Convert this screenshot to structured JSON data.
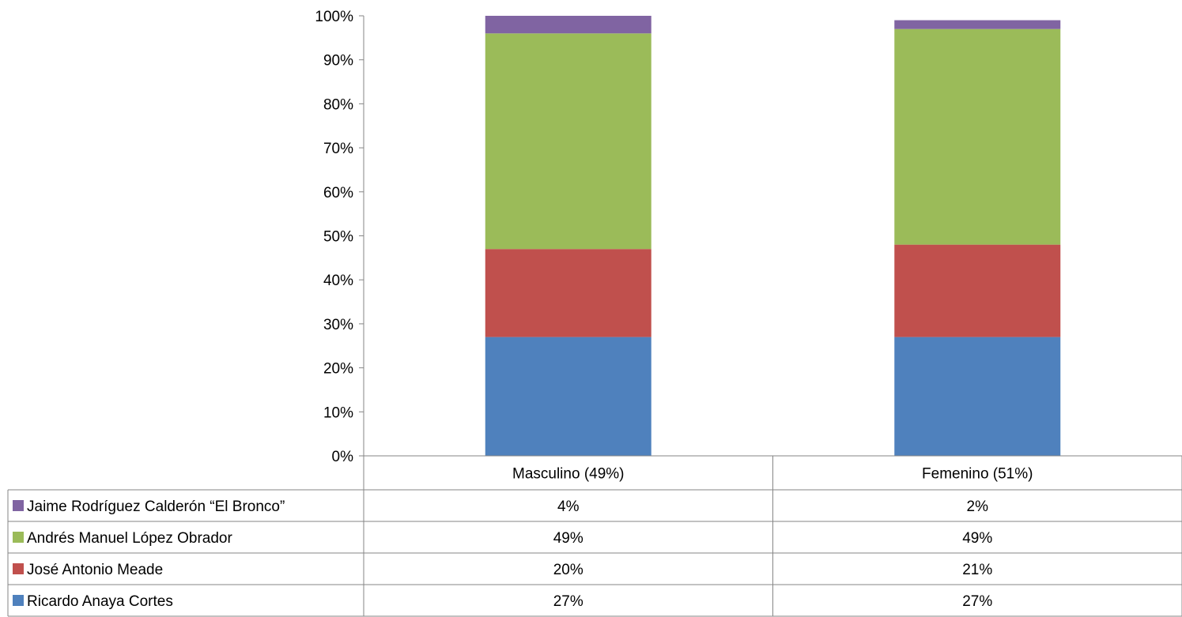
{
  "chart_data": {
    "type": "bar",
    "stacked": true,
    "categories": [
      "Masculino (49%)",
      "Femenino (51%)"
    ],
    "series": [
      {
        "name": "Ricardo Anaya Cortes",
        "values": [
          27,
          27
        ],
        "labels": [
          "27%",
          "27%"
        ],
        "color": "#4F81BD"
      },
      {
        "name": "José Antonio Meade",
        "values": [
          20,
          21
        ],
        "labels": [
          "20%",
          "21%"
        ],
        "color": "#C0504D"
      },
      {
        "name": "Andrés Manuel López Obrador",
        "values": [
          49,
          49
        ],
        "labels": [
          "49%",
          "49%"
        ],
        "color": "#9BBB59"
      },
      {
        "name": "Jaime Rodríguez Calderón “El Bronco”",
        "values": [
          4,
          2
        ],
        "labels": [
          "4%",
          "2%"
        ],
        "color": "#8064A2"
      }
    ],
    "ylim": [
      0,
      100
    ],
    "yticks": [
      "0%",
      "10%",
      "20%",
      "30%",
      "40%",
      "50%",
      "60%",
      "70%",
      "80%",
      "90%",
      "100%"
    ],
    "legend_placement": "data-table",
    "grid": false
  }
}
